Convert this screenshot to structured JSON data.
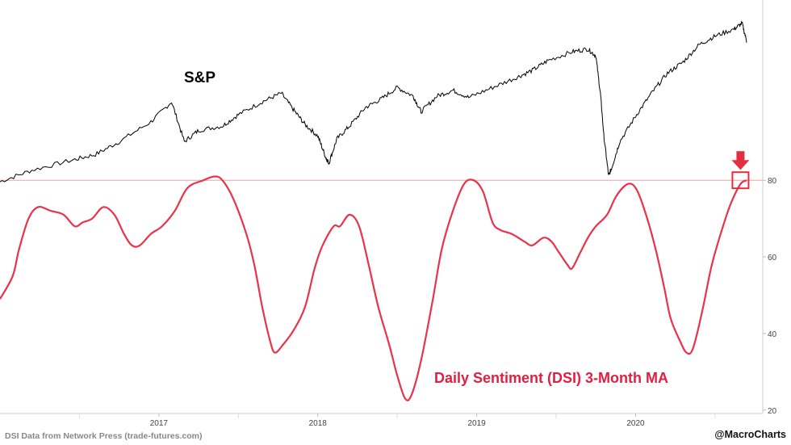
{
  "chart_data": {
    "type": "line",
    "title": "",
    "xlabel": "",
    "ylabel": "",
    "series": [
      {
        "name": "S&P",
        "label": "S&P",
        "color": "#000000",
        "axis": "unlabeled",
        "points": [
          [
            2016.5,
            2.0
          ],
          [
            2016.7,
            6.0
          ],
          [
            2016.95,
            9.5
          ],
          [
            2017.1,
            11.5
          ],
          [
            2017.25,
            16.0
          ],
          [
            2017.45,
            23.0
          ],
          [
            2017.58,
            30.0
          ],
          [
            2017.66,
            16.0
          ],
          [
            2017.75,
            20.0
          ],
          [
            2017.9,
            21.5
          ],
          [
            2018.0,
            25.5
          ],
          [
            2018.15,
            30.0
          ],
          [
            2018.27,
            33.0
          ],
          [
            2018.35,
            27.0
          ],
          [
            2018.42,
            22.0
          ],
          [
            2018.5,
            18.0
          ],
          [
            2018.55,
            10.5
          ],
          [
            2018.57,
            8.5
          ],
          [
            2018.62,
            17.0
          ],
          [
            2018.7,
            21.5
          ],
          [
            2018.8,
            28.0
          ],
          [
            2018.9,
            31.0
          ],
          [
            2019.0,
            35.0
          ],
          [
            2019.1,
            32.0
          ],
          [
            2019.15,
            26.5
          ],
          [
            2019.25,
            32.0
          ],
          [
            2019.35,
            34.0
          ],
          [
            2019.45,
            31.5
          ],
          [
            2019.6,
            35.0
          ],
          [
            2019.75,
            38.5
          ],
          [
            2019.85,
            41.0
          ],
          [
            2019.95,
            44.5
          ],
          [
            2020.1,
            47.5
          ],
          [
            2020.2,
            48.5
          ],
          [
            2020.25,
            46.0
          ],
          [
            2020.28,
            32.0
          ],
          [
            2020.3,
            18.0
          ],
          [
            2020.33,
            4.0
          ],
          [
            2020.35,
            7.0
          ],
          [
            2020.4,
            16.0
          ],
          [
            2020.5,
            25.0
          ],
          [
            2020.6,
            33.0
          ],
          [
            2020.7,
            40.0
          ],
          [
            2020.8,
            44.0
          ],
          [
            2020.9,
            50.0
          ],
          [
            2021.0,
            53.0
          ],
          [
            2021.12,
            55.5
          ],
          [
            2021.17,
            57.5
          ],
          [
            2021.2,
            51.0
          ]
        ]
      },
      {
        "name": "Daily Sentiment (DSI) 3-Month MA",
        "label": "Daily Sentiment (DSI) 3-Month MA",
        "color": "#e8334a",
        "axis": "right",
        "points": [
          [
            2016.5,
            49
          ],
          [
            2016.58,
            55
          ],
          [
            2016.62,
            62
          ],
          [
            2016.68,
            70
          ],
          [
            2016.74,
            73
          ],
          [
            2016.82,
            72
          ],
          [
            2016.9,
            71
          ],
          [
            2016.97,
            68
          ],
          [
            2017.02,
            69
          ],
          [
            2017.08,
            70
          ],
          [
            2017.15,
            73
          ],
          [
            2017.22,
            71
          ],
          [
            2017.28,
            66
          ],
          [
            2017.33,
            63
          ],
          [
            2017.38,
            63
          ],
          [
            2017.45,
            66
          ],
          [
            2017.52,
            68
          ],
          [
            2017.6,
            72
          ],
          [
            2017.68,
            78
          ],
          [
            2017.78,
            80
          ],
          [
            2017.85,
            81
          ],
          [
            2017.9,
            80
          ],
          [
            2017.97,
            75
          ],
          [
            2018.05,
            66
          ],
          [
            2018.1,
            58
          ],
          [
            2018.15,
            47
          ],
          [
            2018.2,
            38
          ],
          [
            2018.23,
            35
          ],
          [
            2018.28,
            37
          ],
          [
            2018.35,
            41
          ],
          [
            2018.42,
            47
          ],
          [
            2018.48,
            57
          ],
          [
            2018.53,
            63
          ],
          [
            2018.6,
            68
          ],
          [
            2018.64,
            68
          ],
          [
            2018.7,
            71
          ],
          [
            2018.76,
            68
          ],
          [
            2018.82,
            58
          ],
          [
            2018.88,
            47
          ],
          [
            2018.95,
            37
          ],
          [
            2019.0,
            29
          ],
          [
            2019.05,
            23
          ],
          [
            2019.09,
            24
          ],
          [
            2019.15,
            33
          ],
          [
            2019.22,
            48
          ],
          [
            2019.28,
            62
          ],
          [
            2019.35,
            72
          ],
          [
            2019.42,
            79
          ],
          [
            2019.48,
            80
          ],
          [
            2019.54,
            77
          ],
          [
            2019.6,
            69
          ],
          [
            2019.65,
            67
          ],
          [
            2019.72,
            66
          ],
          [
            2019.8,
            64
          ],
          [
            2019.85,
            63
          ],
          [
            2019.92,
            65
          ],
          [
            2019.97,
            64
          ],
          [
            2020.02,
            61
          ],
          [
            2020.07,
            58
          ],
          [
            2020.1,
            57
          ],
          [
            2020.15,
            61
          ],
          [
            2020.2,
            65
          ],
          [
            2020.25,
            68
          ],
          [
            2020.32,
            71
          ],
          [
            2020.38,
            76
          ],
          [
            2020.45,
            79
          ],
          [
            2020.5,
            78
          ],
          [
            2020.55,
            73
          ],
          [
            2020.62,
            63
          ],
          [
            2020.68,
            52
          ],
          [
            2020.72,
            44
          ],
          [
            2020.78,
            38
          ],
          [
            2020.82,
            35
          ],
          [
            2020.86,
            36
          ],
          [
            2020.92,
            46
          ],
          [
            2020.98,
            58
          ],
          [
            2021.05,
            68
          ],
          [
            2021.1,
            74
          ],
          [
            2021.16,
            79
          ],
          [
            2021.2,
            80
          ]
        ]
      }
    ],
    "x_axis": {
      "range": [
        2016.5,
        2021.3
      ],
      "ticks": [
        {
          "value": 2017.5,
          "label": "2017"
        },
        {
          "value": 2018.5,
          "label": "2018"
        },
        {
          "value": 2019.5,
          "label": "2019"
        },
        {
          "value": 2020.5,
          "label": "2020"
        }
      ]
    },
    "y_axis_right": {
      "range": [
        17,
        87
      ],
      "ticks": [
        20,
        40,
        60,
        80
      ]
    },
    "y_axis_sp": {
      "range": [
        0,
        60
      ]
    },
    "reference_line": {
      "axis": "right",
      "value": 80,
      "color": "#f2a0a8"
    },
    "annotations": {
      "arrow": {
        "direction": "down",
        "points_to_x": 2021.16,
        "color": "#e03040"
      },
      "highlight_box": {
        "x": 2021.16,
        "y": 80,
        "color": "#e03040"
      }
    }
  },
  "text": {
    "sp_label": "S&P",
    "dsi_label": "Daily Sentiment (DSI) 3-Month MA",
    "source": "DSI Data from Network Press (trade-futures.com)",
    "handle": "@MacroCharts"
  }
}
